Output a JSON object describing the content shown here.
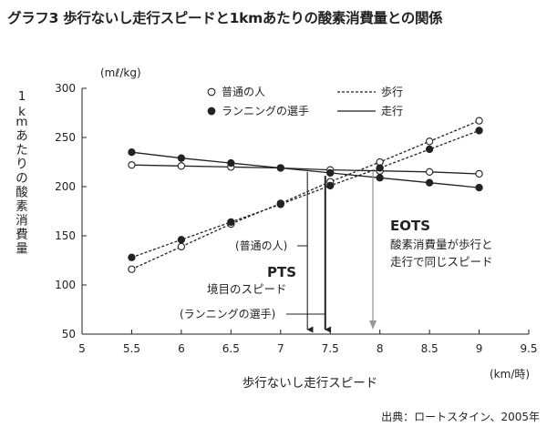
{
  "title": "グラフ3 歩行ないし走行スピードと1kmあたりの酸素消費量との関係",
  "source": "出典：ロートスタイン、2005年",
  "colors": {
    "line": "#222222",
    "eots": "#999999"
  },
  "chart_data": {
    "type": "line",
    "title": "グラフ3 歩行ないし走行スピードと1kmあたりの酸素消費量との関係",
    "xlabel": "歩行ないし走行スピード",
    "xunit": "(km/時)",
    "ylabel": "1kmあたりの酸素消費量",
    "yunit": "(mℓ/kg)",
    "xlim": [
      5,
      9.5
    ],
    "ylim": [
      50,
      300
    ],
    "xticks": [
      "5",
      "5.5",
      "6",
      "6.5",
      "7",
      "7.5",
      "8",
      "8.5",
      "9",
      "9.5"
    ],
    "yticks": [
      "50",
      "100",
      "150",
      "200",
      "250",
      "300"
    ],
    "grid": false,
    "legend": {
      "placement": "top",
      "markers": [
        {
          "label": "普通の人",
          "marker": "open-circle"
        },
        {
          "label": "ランニングの選手",
          "marker": "filled-circle"
        }
      ],
      "lines": [
        {
          "label": "歩行",
          "style": "dashed"
        },
        {
          "label": "走行",
          "style": "solid"
        }
      ]
    },
    "series": [
      {
        "name": "普通の人",
        "mode": "歩行",
        "marker": "open",
        "style": "dashed",
        "x": [
          5.5,
          6,
          6.5,
          7,
          7.5,
          8,
          8.5,
          9
        ],
        "y": [
          116,
          139,
          162,
          183,
          205,
          225,
          246,
          267
        ]
      },
      {
        "name": "普通の人",
        "mode": "走行",
        "marker": "open",
        "style": "solid",
        "x": [
          5.5,
          6,
          6.5,
          7,
          7.5,
          8,
          8.5,
          9
        ],
        "y": [
          222,
          221,
          220,
          219,
          217,
          216,
          215,
          213
        ]
      },
      {
        "name": "ランニングの選手",
        "mode": "歩行",
        "marker": "filled",
        "style": "dashed",
        "x": [
          5.5,
          6,
          6.5,
          7,
          7.5,
          8,
          8.5,
          9
        ],
        "y": [
          128,
          146,
          164,
          182,
          201,
          219,
          238,
          257
        ]
      },
      {
        "name": "ランニングの選手",
        "mode": "走行",
        "marker": "filled",
        "style": "solid",
        "x": [
          5.5,
          6,
          6.5,
          7,
          7.5,
          8,
          8.5,
          9
        ],
        "y": [
          235,
          229,
          224,
          219,
          214,
          209,
          204,
          199
        ]
      }
    ],
    "annotations": {
      "pts_title": "PTS",
      "pts_sub": "境目のスピード",
      "normal": "(普通の人)",
      "runner": "(ランニングの選手)",
      "eots_title": "EOTS",
      "eots_line1": "酸素消費量が歩行と",
      "eots_line2": "走行で同じスピード"
    },
    "markers_x": {
      "pts_normal": 7.27,
      "pts_runner": 7.45,
      "eots": 7.93
    },
    "markers_y": {
      "pts_normal": 215,
      "pts_runner": 211,
      "eots": 215
    }
  }
}
